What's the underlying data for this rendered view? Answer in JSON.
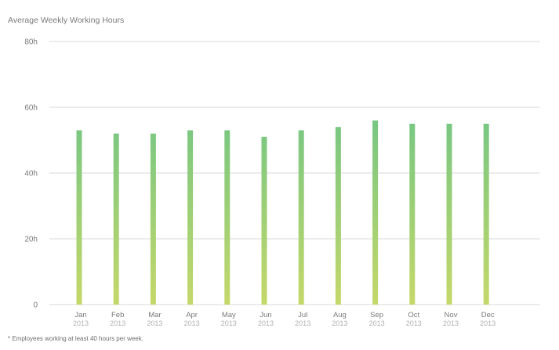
{
  "chart_data": {
    "type": "bar",
    "title": "Average Weekly Working Hours",
    "footnote": "* Employees working at least 40 hours per week.",
    "xlabel": "",
    "ylabel": "",
    "ylim": [
      0,
      80
    ],
    "y_ticks": [
      {
        "value": 0,
        "label": "0"
      },
      {
        "value": 20,
        "label": "20h"
      },
      {
        "value": 40,
        "label": "40h"
      },
      {
        "value": 60,
        "label": "60h"
      },
      {
        "value": 80,
        "label": "80h"
      }
    ],
    "grid": true,
    "legend": "none",
    "categories": [
      "Jan",
      "Feb",
      "Mar",
      "Apr",
      "May",
      "Jun",
      "Jul",
      "Aug",
      "Sep",
      "Oct",
      "Nov",
      "Dec"
    ],
    "category_sublabel": "2013",
    "values": [
      53,
      52,
      52,
      53,
      53,
      51,
      53,
      54,
      56,
      55,
      55,
      55
    ],
    "colors": {
      "bar_top": "#55bf8c",
      "bar_bottom": "#c5d86a",
      "grid": "#d9d9d9",
      "axis_text": "#7a7a7a",
      "year_text": "#b0b0b0"
    }
  }
}
